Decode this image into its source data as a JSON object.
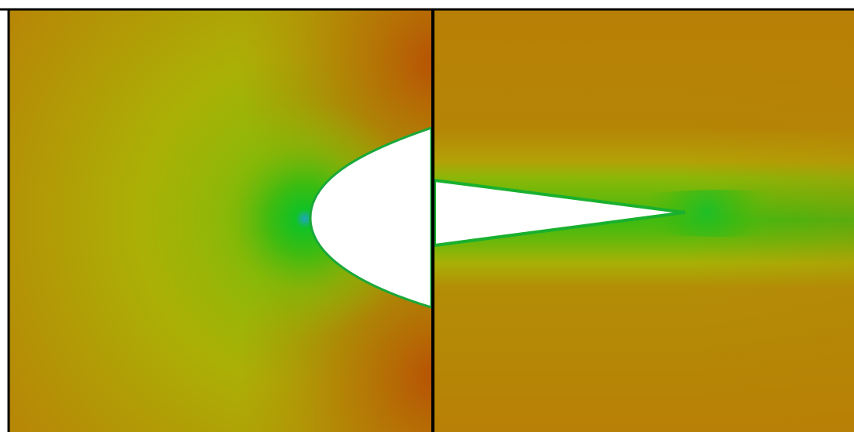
{
  "figure": {
    "panels": [
      {
        "name": "leading-edge-panel",
        "shape": "airfoil-leading-edge"
      },
      {
        "name": "trailing-edge-panel",
        "shape": "airfoil-trailing-edge"
      }
    ],
    "colors": {
      "background": "#ffffff",
      "frame": "#000000",
      "free_stream": "#b87f06",
      "far_field_edge": "#ba5005",
      "mid_field": "#b2ac05",
      "near_field": "#6cb80a",
      "stagnation": "#11c225",
      "stagnation_core": "#1fa6c0",
      "surface_line": "#1aa83a",
      "body_fill": "#ffffff"
    }
  }
}
